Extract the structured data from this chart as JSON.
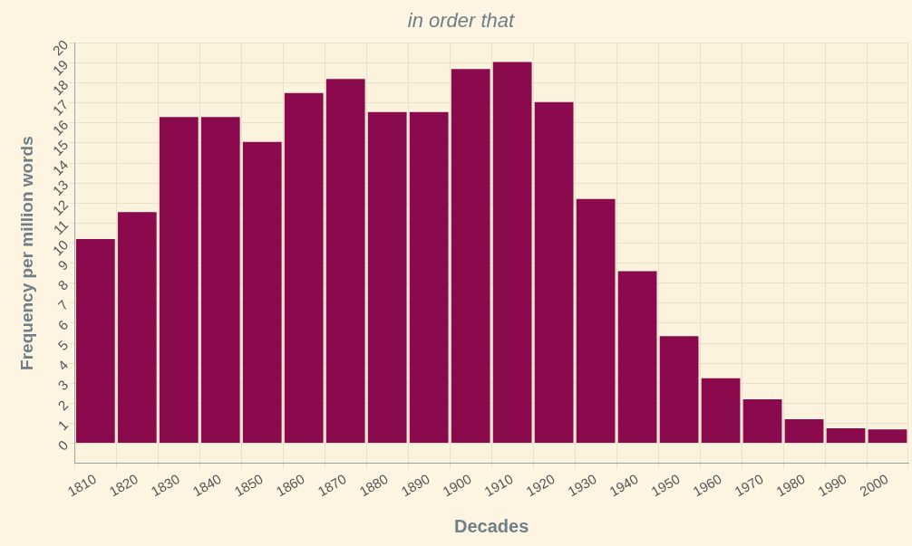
{
  "chart_data": {
    "type": "bar",
    "title": "in order that",
    "xlabel": "Decades",
    "ylabel": "Frequency per million words",
    "categories": [
      "1810",
      "1820",
      "1830",
      "1840",
      "1850",
      "1860",
      "1870",
      "1880",
      "1890",
      "1900",
      "1910",
      "1920",
      "1930",
      "1940",
      "1950",
      "1960",
      "1970",
      "1980",
      "1990",
      "2000"
    ],
    "values": [
      10.2,
      11.55,
      16.3,
      16.3,
      15.05,
      17.5,
      18.2,
      16.55,
      16.55,
      18.7,
      19.05,
      17.05,
      12.2,
      8.6,
      5.35,
      3.25,
      2.2,
      1.2,
      0.75,
      0.7
    ],
    "color": "#8b0a4e",
    "ylim": [
      -1,
      20
    ],
    "yticks": [
      0,
      1,
      2,
      3,
      4,
      5,
      6,
      7,
      8,
      9,
      10,
      11,
      12,
      13,
      14,
      15,
      16,
      17,
      18,
      19,
      20
    ],
    "grid": true,
    "legend": false
  }
}
